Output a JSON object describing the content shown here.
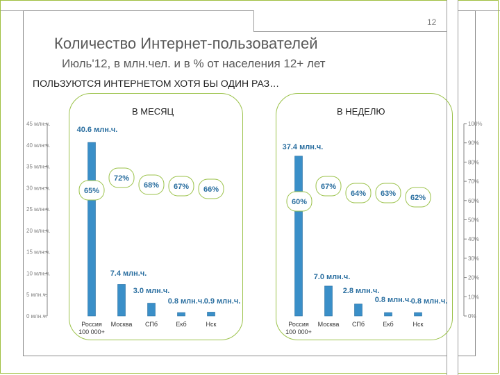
{
  "slide_number": "12",
  "title": "Количество Интернет-пользователей",
  "subtitle": "Июль'12, в млн.чел. и в % от населения 12+ лет",
  "heading": "ПОЛЬЗУЮТСЯ ИНТЕРНЕТОМ ХОТЯ БЫ ОДИН РАЗ…",
  "colors": {
    "bar": "#3a8fc8",
    "bar_edge": "#2b6fa0",
    "percent_box": "#9bc24a",
    "frame": "#9bc24a",
    "axis": "#808080"
  },
  "chart_data": {
    "type": "bar",
    "left_axis": {
      "label": "млн.ч.",
      "ticks": [
        0,
        5,
        10,
        15,
        20,
        25,
        30,
        35,
        40,
        45
      ],
      "tick_labels": [
        "0 млн.ч.",
        "5 млн.ч.",
        "10 млн.ч.",
        "15 млн.ч.",
        "20 млн.ч.",
        "25 млн.ч.",
        "30 млн.ч.",
        "35 млн.ч.",
        "40 млн.ч.",
        "45 млн.ч."
      ],
      "ylim": [
        0,
        45
      ]
    },
    "right_axis": {
      "ticks": [
        0,
        10,
        20,
        30,
        40,
        50,
        60,
        70,
        80,
        90,
        100
      ],
      "tick_labels": [
        "0%",
        "10%",
        "20%",
        "30%",
        "40%",
        "50%",
        "60%",
        "70%",
        "80%",
        "90%",
        "100%"
      ],
      "ylim": [
        0,
        100
      ]
    },
    "groups": [
      {
        "title": "В МЕСЯЦ",
        "categories": [
          "Россия 100 000+",
          "Москва",
          "СПб",
          "Екб",
          "Нск"
        ],
        "category_labels": [
          [
            "Россия",
            "100 000+"
          ],
          [
            "Москва"
          ],
          [
            "СПб"
          ],
          [
            "Екб"
          ],
          [
            "Нск"
          ]
        ],
        "values": [
          40.6,
          7.4,
          3.0,
          0.8,
          0.9
        ],
        "value_labels": [
          "40.6 млн.ч.",
          "7.4 млн.ч.",
          "3.0 млн.ч.",
          "0.8 млн.ч.",
          "0.9 млн.ч."
        ],
        "percents": [
          65,
          72,
          68,
          67,
          66
        ],
        "percent_labels": [
          "65%",
          "72%",
          "68%",
          "67%",
          "66%"
        ]
      },
      {
        "title": "В НЕДЕЛЮ",
        "categories": [
          "Россия 100 000+",
          "Москва",
          "СПб",
          "Екб",
          "Нск"
        ],
        "category_labels": [
          [
            "Россия",
            "100 000+"
          ],
          [
            "Москва"
          ],
          [
            "СПб"
          ],
          [
            "Екб"
          ],
          [
            "Нск"
          ]
        ],
        "values": [
          37.4,
          7.0,
          2.8,
          0.8,
          0.8
        ],
        "value_labels": [
          "37.4 млн.ч.",
          "7.0 млн.ч.",
          "2.8 млн.ч.",
          "0.8 млн.ч.",
          "0.8 млн.ч."
        ],
        "percents": [
          60,
          67,
          64,
          63,
          62
        ],
        "percent_labels": [
          "60%",
          "67%",
          "64%",
          "63%",
          "62%"
        ]
      }
    ]
  }
}
